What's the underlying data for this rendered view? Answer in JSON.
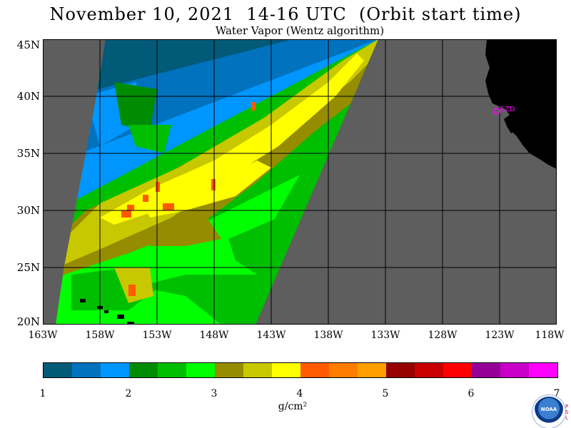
{
  "title": "November 10, 2021  14-16 UTC  (Orbit start time)",
  "subtitle": "Water Vapor (Wentz algorithm)",
  "map": {
    "lat_labels": [
      "45N",
      "40N",
      "35N",
      "30N",
      "25N",
      "20N"
    ],
    "lon_labels": [
      "163W",
      "158W",
      "153W",
      "148W",
      "143W",
      "138W",
      "133W",
      "128W",
      "123W",
      "118W"
    ],
    "lat_range": [
      20,
      45
    ],
    "lon_range": [
      -163,
      -118
    ],
    "station_label": "CZD",
    "colors": {
      "no_data": "#5e5e5e",
      "land": "#000000",
      "grid": "#000000",
      "station": "#ff00ff"
    }
  },
  "colorbar": {
    "ticks": [
      "1",
      "2",
      "3",
      "4",
      "5",
      "6",
      "7"
    ],
    "units": "g/cm²",
    "colors": [
      "#005a78",
      "#0072be",
      "#0096ff",
      "#008c00",
      "#00be00",
      "#00ff00",
      "#968c00",
      "#c8c800",
      "#ffff00",
      "#ff5a00",
      "#ff7d00",
      "#ffa000",
      "#960000",
      "#c80000",
      "#ff0000",
      "#960096",
      "#c800c8",
      "#ff00ff"
    ]
  },
  "logo": {
    "text": "NOAA",
    "lab_text": "PSL"
  }
}
